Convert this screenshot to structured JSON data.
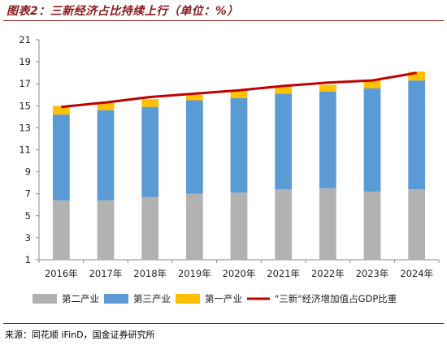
{
  "title": "图表2：三新经济占比持续上行（单位：%）",
  "source": "来源：同花顺 iFinD，国金证券研究所",
  "chart_data": {
    "type": "bar",
    "stacked": true,
    "categories": [
      "2016年",
      "2017年",
      "2018年",
      "2019年",
      "2020年",
      "2021年",
      "2022年",
      "2023年",
      "2024年"
    ],
    "series": [
      {
        "name": "第二产业",
        "kind": "bar",
        "color": "#b2b2b2",
        "values": [
          6.4,
          6.4,
          6.7,
          7.0,
          7.1,
          7.4,
          7.5,
          7.2,
          7.4
        ]
      },
      {
        "name": "第三产业",
        "kind": "bar",
        "color": "#5b9bd5",
        "values": [
          7.8,
          8.2,
          8.2,
          8.5,
          8.6,
          8.7,
          8.8,
          9.4,
          9.9
        ]
      },
      {
        "name": "第一产业",
        "kind": "bar",
        "color": "#ffc000",
        "values": [
          0.8,
          0.7,
          0.7,
          0.5,
          0.7,
          0.7,
          0.6,
          0.7,
          0.8
        ]
      },
      {
        "name": "\"三新\"经济增加值占GDP比重",
        "kind": "line",
        "color": "#c00000",
        "values": [
          14.9,
          15.3,
          15.8,
          16.1,
          16.4,
          16.8,
          17.1,
          17.3,
          18.0
        ]
      }
    ],
    "ylim": [
      1,
      21
    ],
    "yticks": [
      1,
      3,
      5,
      7,
      9,
      11,
      13,
      15,
      17,
      19,
      21
    ],
    "grid": false,
    "legend": "bottom"
  }
}
